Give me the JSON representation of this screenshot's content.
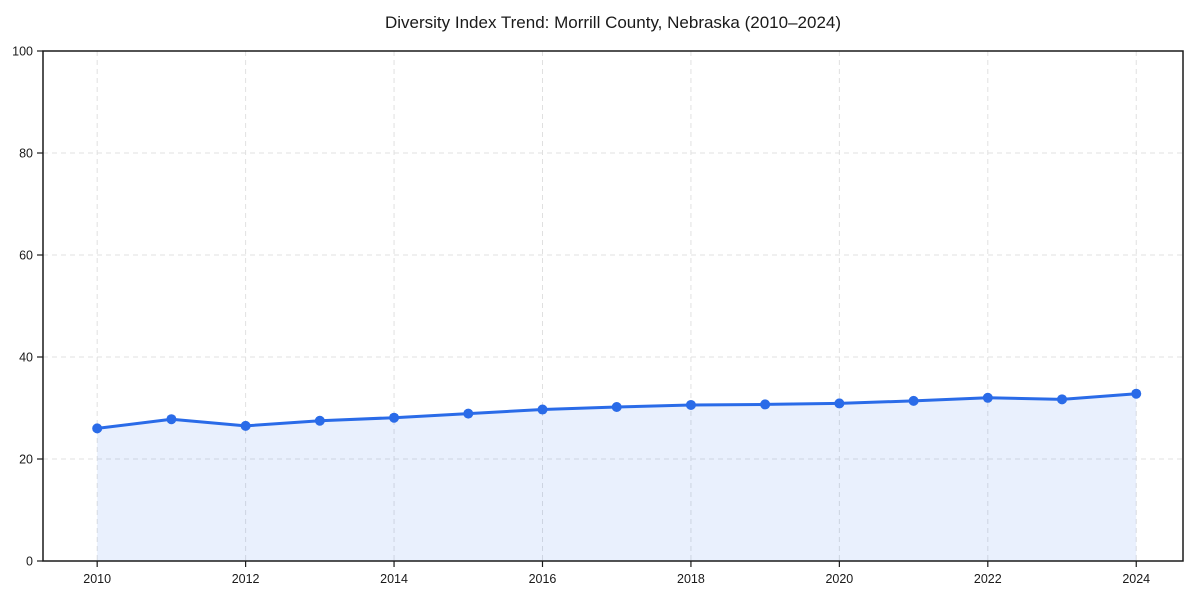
{
  "page": {
    "background": "#ffffff"
  },
  "chart_data": {
    "type": "line",
    "title": "Diversity Index Trend: Morrill County, Nebraska (2010–2024)",
    "x": [
      2010,
      2011,
      2012,
      2013,
      2014,
      2015,
      2016,
      2017,
      2018,
      2019,
      2020,
      2021,
      2022,
      2023,
      2024
    ],
    "series": [
      {
        "name": "Diversity Index",
        "values": [
          26.0,
          27.8,
          26.5,
          27.5,
          28.1,
          28.9,
          29.7,
          30.2,
          30.6,
          30.7,
          30.9,
          31.4,
          32.0,
          31.7,
          32.8
        ]
      }
    ],
    "xlabel": "",
    "ylabel": "",
    "xlim": [
      2009.27,
      2024.63
    ],
    "ylim": [
      0,
      100
    ],
    "xticks": [
      2010,
      2012,
      2014,
      2016,
      2018,
      2020,
      2022,
      2024
    ],
    "yticks": [
      0,
      20,
      40,
      60,
      80,
      100
    ],
    "grid": true,
    "grid_style": "dashed",
    "legend": "none",
    "colors": {
      "line": "#2a6be8",
      "marker": "#2a6be8",
      "area_fill": "rgba(42,107,232,0.10)",
      "grid": "#e0e0e0",
      "spine": "#1a1a1a",
      "tick_label": "#1a1a1a",
      "title": "#1a1a1a"
    },
    "style": {
      "line_width": 3,
      "marker_radius": 5,
      "tick_font_size": 12.5,
      "title_font_size": 17
    }
  }
}
